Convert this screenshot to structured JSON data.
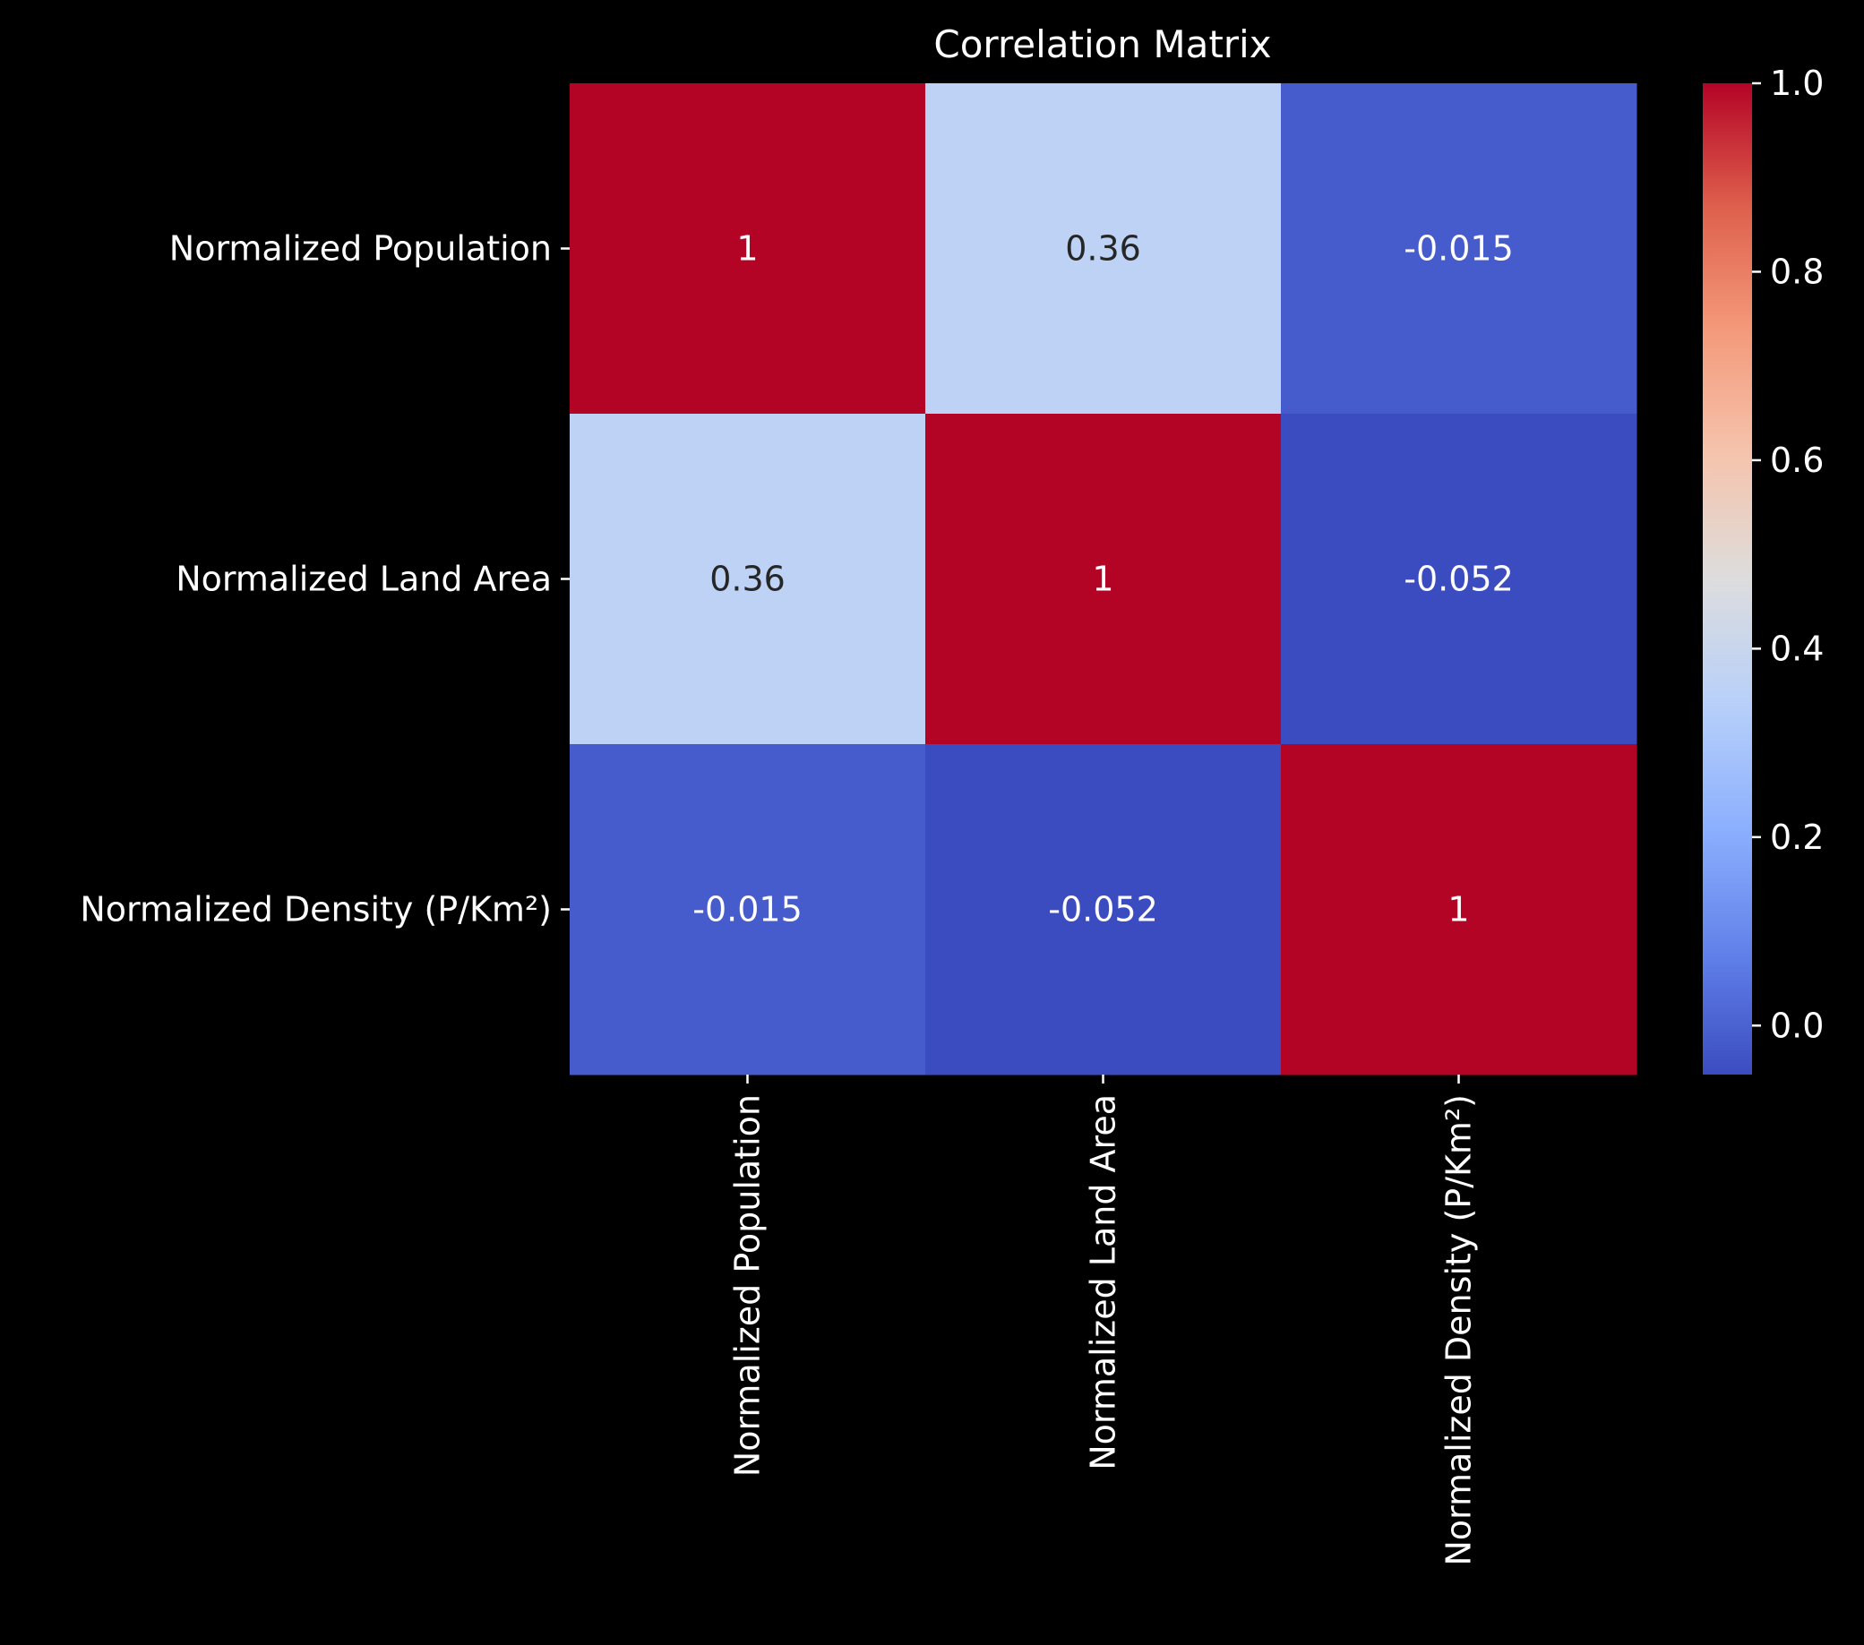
{
  "chart_data": {
    "type": "heatmap",
    "title": "Correlation Matrix",
    "xlabel": "",
    "ylabel": "",
    "x_categories": [
      "Normalized Population",
      "Normalized Land Area",
      "Normalized Density (P/Km²)"
    ],
    "y_categories": [
      "Normalized Population",
      "Normalized Land Area",
      "Normalized Density (P/Km²)"
    ],
    "values": [
      [
        1,
        0.36,
        -0.015
      ],
      [
        0.36,
        1,
        -0.052
      ],
      [
        -0.015,
        -0.052,
        1
      ]
    ],
    "annotations": [
      [
        "1",
        "0.36",
        "-0.015"
      ],
      [
        "0.36",
        "1",
        "-0.052"
      ],
      [
        "-0.015",
        "-0.052",
        "1"
      ]
    ],
    "colormap": "coolwarm",
    "vmin": -0.052,
    "vmax": 1,
    "colorbar": {
      "ticks": [
        0.0,
        0.2,
        0.4,
        0.6,
        0.8,
        1.0
      ],
      "tick_labels": [
        "0.0",
        "0.2",
        "0.4",
        "0.6",
        "0.8",
        "1.0"
      ]
    },
    "grid": false,
    "legend": "colorbar-right"
  },
  "colors": {
    "background": "#000000",
    "text": "#ffffff",
    "annotation_dark": "#262626",
    "annotation_light": "#ffffff"
  }
}
